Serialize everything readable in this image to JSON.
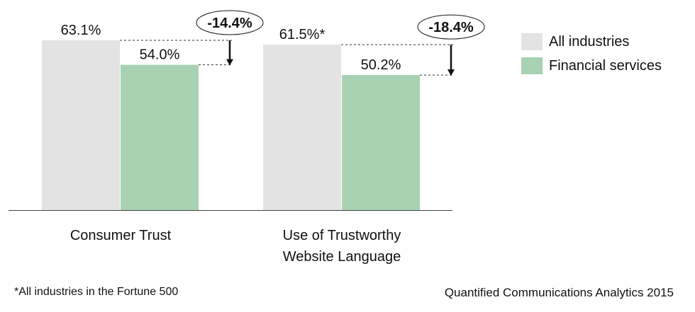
{
  "chart_data": {
    "type": "bar",
    "categories": [
      "Consumer Trust",
      "Use of Trustworthy Website Language"
    ],
    "category_lines": [
      [
        "Consumer Trust"
      ],
      [
        "Use of Trustworthy",
        "Website Language"
      ]
    ],
    "series": [
      {
        "name": "All industries",
        "values": [
          63.1,
          61.5
        ],
        "labels": [
          "63.1%",
          "61.5%*"
        ],
        "color": "#e3e3e3"
      },
      {
        "name": "Financial services",
        "values": [
          54.0,
          50.2
        ],
        "labels": [
          "54.0%",
          "50.2%"
        ],
        "color": "#a8d2b2"
      }
    ],
    "differences": [
      "-14.4%",
      "-18.4%"
    ],
    "ylim": [
      0,
      63.1
    ],
    "grid": false,
    "legend_position": "top-right"
  },
  "footnote": "*All industries in the Fortune 500",
  "source": "Quantified Communications Analytics 2015"
}
